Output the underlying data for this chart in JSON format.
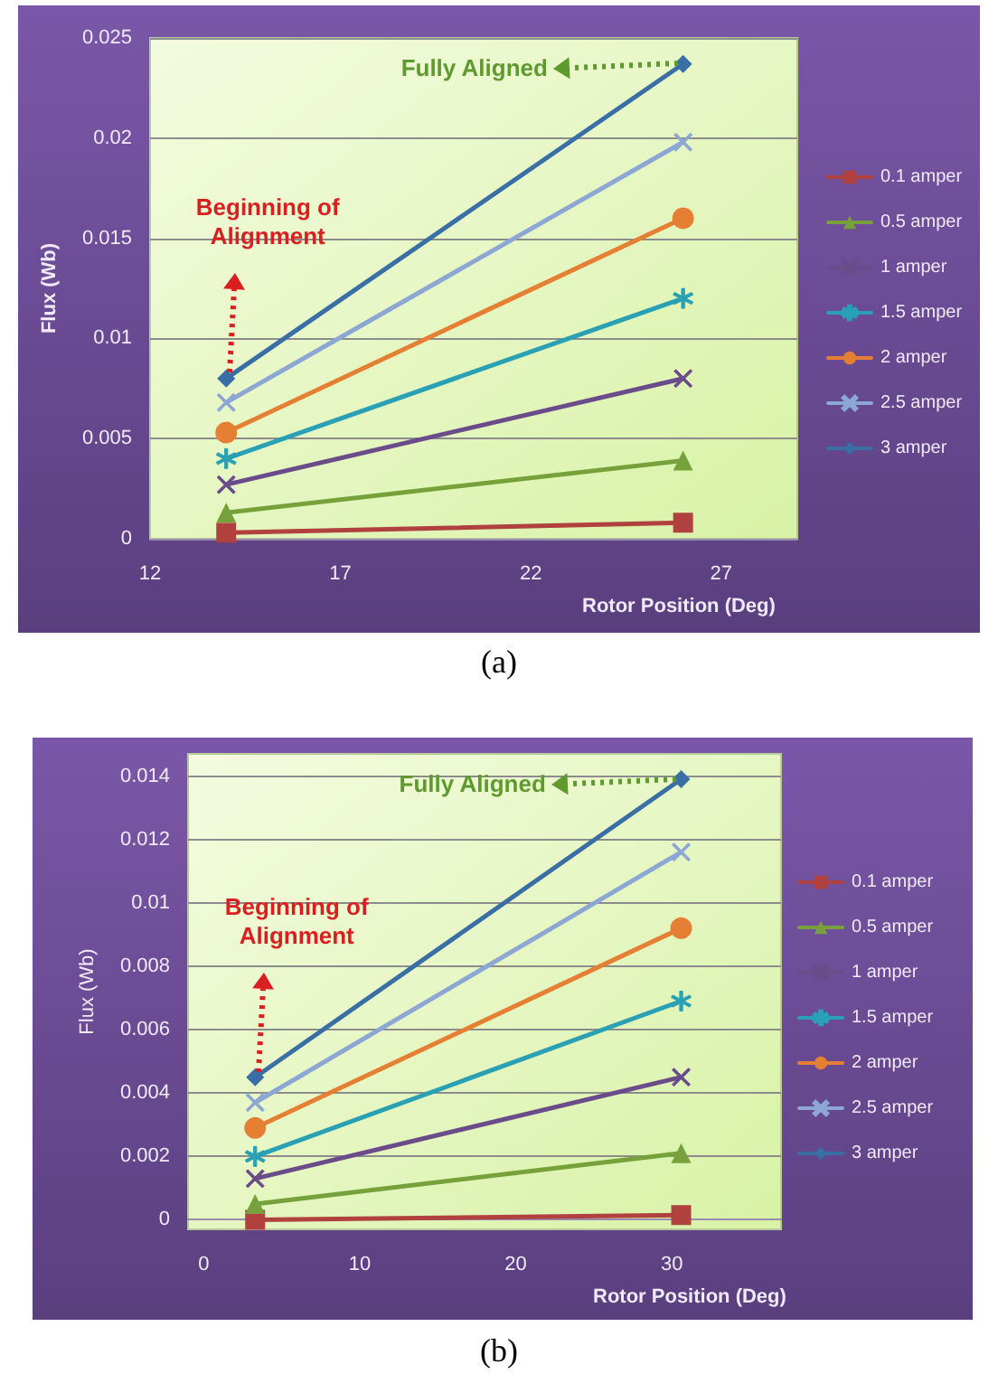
{
  "chart_data": [
    {
      "type": "line",
      "xlabel": "Rotor Position (Deg)",
      "ylabel": "Flux (Wb)",
      "x": [
        14,
        26
      ],
      "xlim": [
        12,
        29
      ],
      "xticks": [
        12,
        17,
        22,
        27
      ],
      "ylim": [
        0,
        0.025
      ],
      "yticks": [
        0,
        0.005,
        0.01,
        0.015,
        0.02,
        0.025
      ],
      "grid": "y",
      "legend": "right",
      "series": [
        {
          "name": "0.1 amper",
          "color": "#b0413e",
          "marker": "square",
          "values": [
            0.0003,
            0.0008
          ]
        },
        {
          "name": "0.5 amper",
          "color": "#77a23b",
          "marker": "triangle",
          "values": [
            0.0013,
            0.0039
          ]
        },
        {
          "name": "1 amper",
          "color": "#6b4c8a",
          "marker": "cross",
          "values": [
            0.0027,
            0.008
          ]
        },
        {
          "name": "1.5 amper",
          "color": "#2aa0b5",
          "marker": "star",
          "values": [
            0.004,
            0.012
          ]
        },
        {
          "name": "2 amper",
          "color": "#e57f33",
          "marker": "circle",
          "values": [
            0.0053,
            0.016
          ]
        },
        {
          "name": "2.5 amper",
          "color": "#8da7d4",
          "marker": "cross",
          "values": [
            0.0068,
            0.0198
          ]
        },
        {
          "name": "3 amper",
          "color": "#3a6fa5",
          "marker": "diamond",
          "values": [
            0.008,
            0.0237
          ]
        }
      ],
      "annotations": [
        {
          "text": "Fully Aligned",
          "x": 26,
          "y": 0.0237
        },
        "Beginning of Alignment",
        "(a)"
      ]
    },
    {
      "type": "line",
      "xlabel": "Rotor Position (Deg)",
      "ylabel": "Flux (Wb)",
      "x": [
        3.3,
        30.6
      ],
      "xlim": [
        -1,
        37
      ],
      "xticks": [
        0,
        10,
        20,
        30
      ],
      "ylim": [
        -0.0003,
        0.0147
      ],
      "yticks": [
        0,
        0.002,
        0.004,
        0.006,
        0.008,
        0.01,
        0.012,
        0.014
      ],
      "grid": "y",
      "legend": "right",
      "series": [
        {
          "name": "0.1 amper",
          "color": "#b0413e",
          "marker": "square",
          "values": [
            0,
            0.00015
          ]
        },
        {
          "name": "0.5 amper",
          "color": "#77a23b",
          "marker": "triangle",
          "values": [
            0.0005,
            0.0021
          ]
        },
        {
          "name": "1 amper",
          "color": "#6b4c8a",
          "marker": "cross",
          "values": [
            0.0013,
            0.0045
          ]
        },
        {
          "name": "1.5 amper",
          "color": "#2aa0b5",
          "marker": "star",
          "values": [
            0.002,
            0.0069
          ]
        },
        {
          "name": "2 amper",
          "color": "#e57f33",
          "marker": "circle",
          "values": [
            0.0029,
            0.0092
          ]
        },
        {
          "name": "2.5 amper",
          "color": "#8da7d4",
          "marker": "cross",
          "values": [
            0.0037,
            0.0116
          ]
        },
        {
          "name": "3 amper",
          "color": "#3a6fa5",
          "marker": "diamond",
          "values": [
            0.0045,
            0.0139
          ]
        }
      ],
      "annotations": [
        {
          "text": "Fully Aligned",
          "x": 30.6,
          "y": 0.0139
        },
        "Beginning of Alignment",
        "(b)"
      ]
    }
  ]
}
